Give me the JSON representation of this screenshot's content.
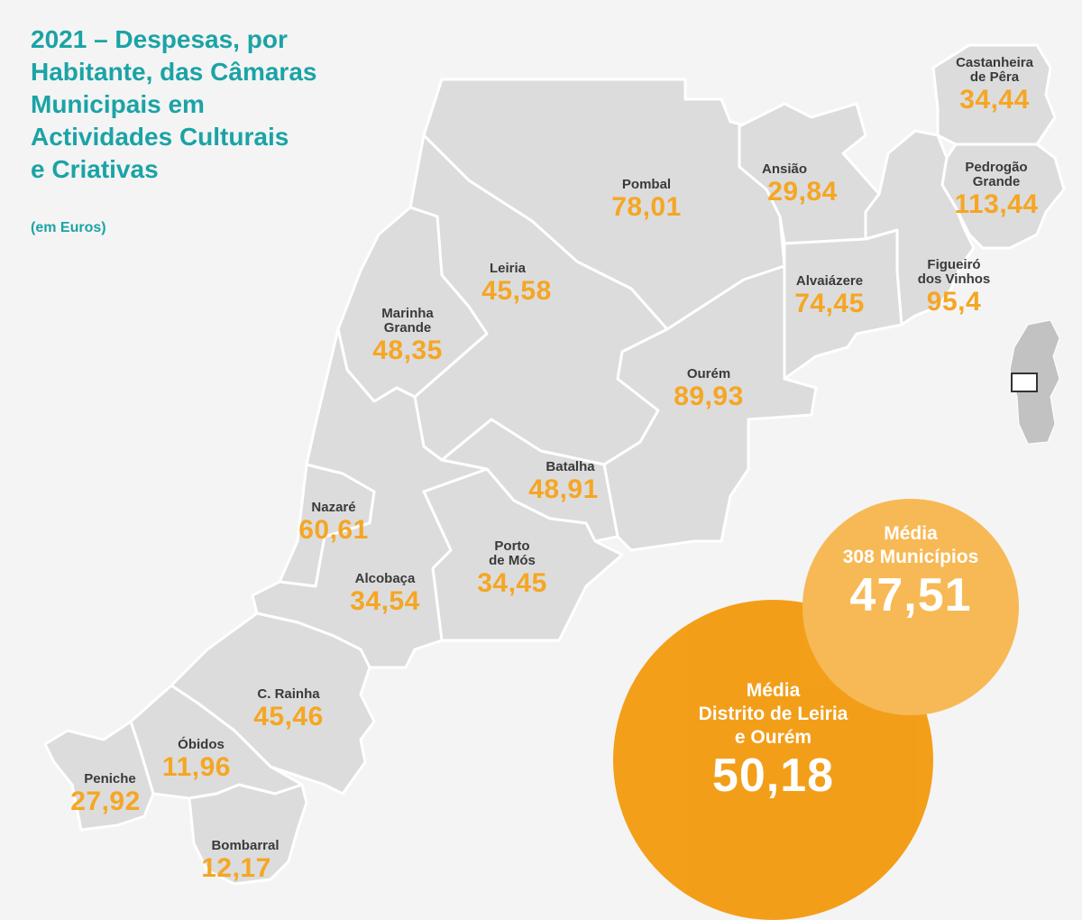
{
  "title_lines": [
    "2021 – Despesas, por",
    "Habitante, das Câmaras",
    "Municipais em",
    "Actividades Culturais",
    "e Criativas"
  ],
  "subtitle": "(em Euros)",
  "municipalities": {
    "castanheira": {
      "name": "Castanheira\nde Pêra",
      "value": "34,44"
    },
    "ansiao": {
      "name": "Ansião",
      "value": "29,84"
    },
    "pedrogao": {
      "name": "Pedrogão\nGrande",
      "value": "113,44"
    },
    "pombal": {
      "name": "Pombal",
      "value": "78,01"
    },
    "figueiro": {
      "name": "Figueiró\ndos Vinhos",
      "value": "95,4"
    },
    "alvaiazere": {
      "name": "Alvaiázere",
      "value": "74,45"
    },
    "leiria": {
      "name": "Leiria",
      "value": "45,58"
    },
    "marinha": {
      "name": "Marinha\nGrande",
      "value": "48,35"
    },
    "ourem": {
      "name": "Ourém",
      "value": "89,93"
    },
    "batalha": {
      "name": "Batalha",
      "value": "48,91"
    },
    "nazare": {
      "name": "Nazaré",
      "value": "60,61"
    },
    "portodemos": {
      "name": "Porto\nde Mós",
      "value": "34,45"
    },
    "alcobaca": {
      "name": "Alcobaça",
      "value": "34,54"
    },
    "caldas": {
      "name": "C. Rainha",
      "value": "45,46"
    },
    "obidos": {
      "name": "Óbidos",
      "value": "11,96"
    },
    "peniche": {
      "name": "Peniche",
      "value": "27,92"
    },
    "bombarral": {
      "name": "Bombarral",
      "value": "12,17"
    }
  },
  "averages": {
    "national": {
      "label": "Média\n308 Municípios",
      "value": "47,51"
    },
    "district": {
      "label": "Média\nDistrito de Leiria\ne Ourém",
      "value": "50,18"
    }
  },
  "colors": {
    "title": "#1ba3a6",
    "value": "#f5a623",
    "municipality_fill": "#dcdcdc",
    "district_circle": "#f39c12",
    "national_circle": "#f7b955"
  }
}
